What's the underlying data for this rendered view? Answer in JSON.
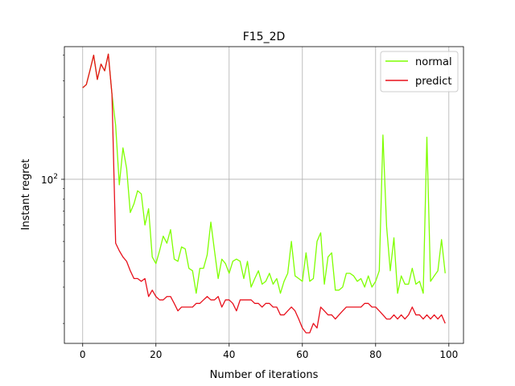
{
  "chart_data": {
    "type": "line",
    "title": "F15_2D",
    "xlabel": "Number of iterations",
    "ylabel": "Instant regret",
    "xlim": [
      -5,
      104
    ],
    "ylim": [
      16,
      440
    ],
    "y_scale": "log",
    "grid": true,
    "legend_position": "top-right",
    "x_ticks": [
      0,
      20,
      40,
      60,
      80,
      100
    ],
    "x_tick_labels": [
      "0",
      "20",
      "40",
      "60",
      "80",
      "100"
    ],
    "y_ticks": [
      100
    ],
    "y_tick_label_base": "10",
    "y_tick_label_exp": "2",
    "series": [
      {
        "name": "normal",
        "color": "#7fff00",
        "values": [
          278,
          288,
          338,
          400,
          305,
          362,
          336,
          405,
          258,
          183,
          94,
          142,
          113,
          69,
          76,
          88,
          85,
          60,
          72,
          42,
          39,
          45,
          53,
          49,
          57,
          41,
          40,
          47,
          46,
          37,
          36,
          28,
          37,
          37,
          43,
          62,
          45,
          33,
          41,
          39,
          35,
          40,
          41,
          40,
          33,
          40,
          30,
          33,
          36,
          31,
          32,
          35,
          31,
          33,
          28,
          32,
          35,
          50,
          34,
          33,
          32,
          44,
          32,
          33,
          50,
          55,
          31,
          42,
          44,
          29,
          29,
          30,
          35,
          35,
          34,
          32,
          33,
          30,
          34,
          30,
          32,
          36,
          164,
          59,
          36,
          52,
          28,
          34,
          31,
          31,
          37,
          31,
          32,
          28,
          160,
          32,
          34,
          36,
          51,
          35
        ]
      },
      {
        "name": "predict",
        "color": "#e8101c",
        "values": [
          278,
          288,
          338,
          400,
          305,
          362,
          336,
          405,
          258,
          49,
          45,
          42,
          40,
          36,
          33,
          33,
          32,
          33,
          27,
          29,
          27,
          26,
          26,
          27,
          27,
          25,
          23,
          24,
          24,
          24,
          24,
          25,
          25,
          26,
          27,
          26,
          26,
          27,
          24,
          26,
          26,
          25,
          23,
          26,
          26,
          26,
          26,
          25,
          25,
          24,
          25,
          25,
          24,
          24,
          22,
          22,
          23,
          24,
          23,
          21,
          19,
          18,
          18,
          20,
          19,
          24,
          23,
          22,
          22,
          21,
          22,
          23,
          24,
          24,
          24,
          24,
          24,
          25,
          25,
          24,
          24,
          23,
          22,
          21,
          21,
          22,
          21,
          22,
          21,
          22,
          24,
          22,
          22,
          21,
          22,
          21,
          22,
          21,
          22,
          20
        ]
      }
    ]
  }
}
